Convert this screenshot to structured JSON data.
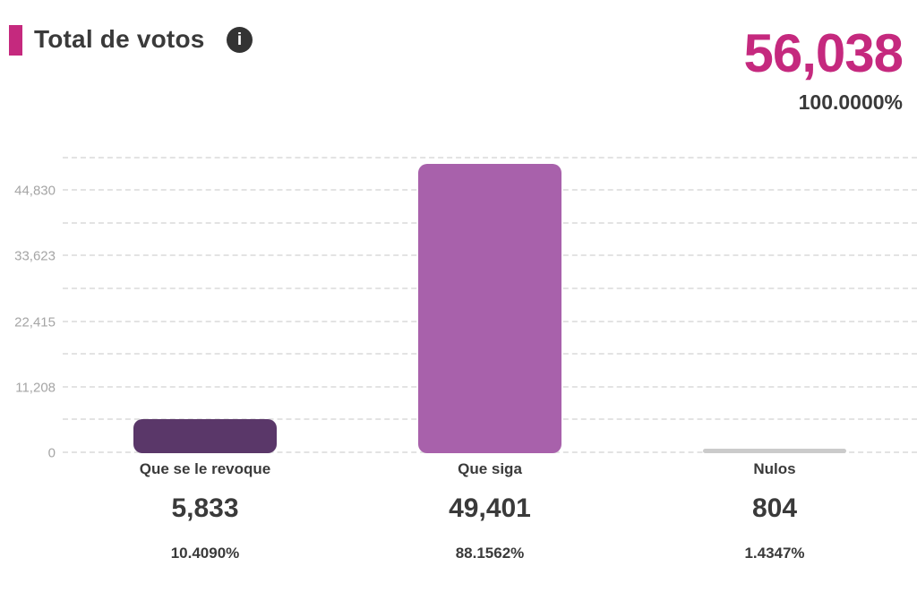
{
  "header": {
    "title": "Total de votos",
    "total_value": "56,038",
    "total_percent": "100.0000%",
    "info_icon_glyph": "i"
  },
  "colors": {
    "accent_pink": "#C5297E",
    "bar_revoque": "#5A3769",
    "bar_siga": "#A861AB",
    "bar_nulos": "#CBCBCB",
    "grid": "#E3E3E3",
    "tick_label": "#A5A5A5",
    "text_dark": "#3A3A3A",
    "info_bg": "#333333"
  },
  "chart_data": {
    "type": "bar",
    "title": "Total de votos",
    "xlabel": "",
    "ylabel": "",
    "grid": "dashed-horizontal",
    "legend": "none",
    "categories": [
      "Que se le revoque",
      "Que siga",
      "Nulos"
    ],
    "values": [
      5833,
      49401,
      804
    ],
    "value_labels": [
      "5,833",
      "49,401",
      "804"
    ],
    "percent_labels": [
      "10.4090%",
      "88.1562%",
      "1.4347%"
    ],
    "series_colors": [
      "#5A3769",
      "#A861AB",
      "#CBCBCB"
    ],
    "total": 56038,
    "ylim": [
      0,
      53130
    ],
    "y_ticks": [
      {
        "value": 0,
        "label": "0"
      },
      {
        "value": 5604,
        "label": ""
      },
      {
        "value": 11208,
        "label": "11,208"
      },
      {
        "value": 16812,
        "label": ""
      },
      {
        "value": 22415,
        "label": "22,415"
      },
      {
        "value": 28019,
        "label": ""
      },
      {
        "value": 33623,
        "label": "33,623"
      },
      {
        "value": 39227,
        "label": ""
      },
      {
        "value": 44830,
        "label": "44,830"
      },
      {
        "value": 50434,
        "label": ""
      }
    ]
  }
}
